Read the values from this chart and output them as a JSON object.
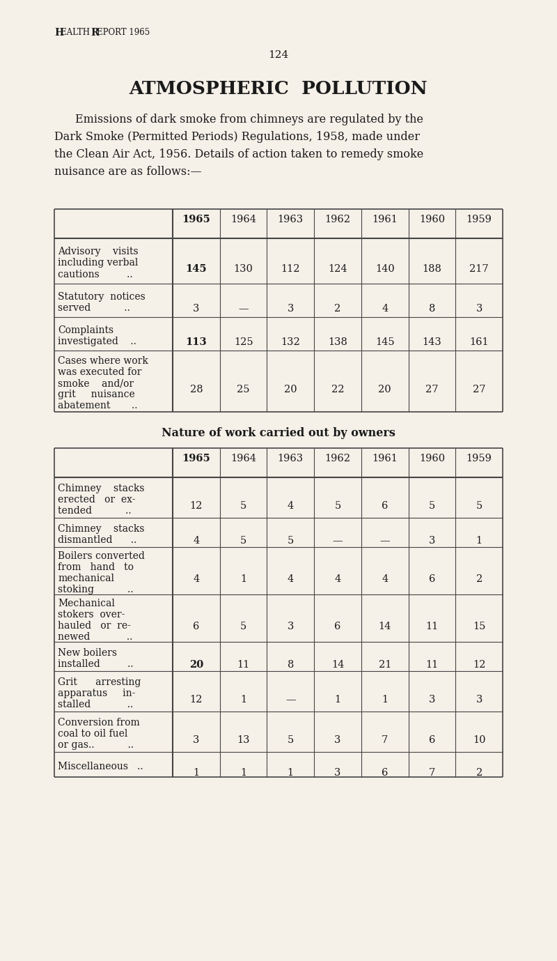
{
  "page_header": "Health Report 1965",
  "page_number": "124",
  "main_title": "ATMOSPHERIC  POLLUTION",
  "intro_text": [
    "Emissions of dark smoke from chimneys are regulated by the",
    "Dark Smoke (Permitted Periods) Regulations, 1958, made under",
    "the Clean Air Act, 1956. Details of action taken to remedy smoke",
    "nuisance are as follows:—"
  ],
  "table1_years": [
    "1965",
    "1964",
    "1963",
    "1962",
    "1961",
    "1960",
    "1959"
  ],
  "table1_rows": [
    {
      "label": [
        "Advisory    visits",
        "including verbal",
        "cautions         .."
      ],
      "values": [
        "145",
        "130",
        "112",
        "124",
        "140",
        "188",
        "217"
      ],
      "bold_first": true
    },
    {
      "label": [
        "Statutory  notices",
        "served           .."
      ],
      "values": [
        "3",
        "—",
        "3",
        "2",
        "4",
        "8",
        "3"
      ],
      "bold_first": false
    },
    {
      "label": [
        "Complaints",
        "investigated    .."
      ],
      "values": [
        "113",
        "125",
        "132",
        "138",
        "145",
        "143",
        "161"
      ],
      "bold_first": true
    },
    {
      "label": [
        "Cases where work",
        "was executed for",
        "smoke    and/or",
        "grit     nuisance",
        "abatement       .."
      ],
      "values": [
        "28",
        "25",
        "20",
        "22",
        "20",
        "27",
        "27"
      ],
      "bold_first": false
    }
  ],
  "table2_title": "Nature of work carried out by owners",
  "table2_years": [
    "1965",
    "1964",
    "1963",
    "1962",
    "1961",
    "1960",
    "1959"
  ],
  "table2_rows": [
    {
      "label": [
        "Chimney    stacks",
        "erected   or  ex-",
        "tended           .."
      ],
      "values": [
        "12",
        "5",
        "4",
        "5",
        "6",
        "5",
        "5"
      ],
      "bold_first": false
    },
    {
      "label": [
        "Chimney    stacks",
        "dismantled      .."
      ],
      "values": [
        "4",
        "5",
        "5",
        "—",
        "—",
        "3",
        "1"
      ],
      "bold_first": false
    },
    {
      "label": [
        "Boilers converted",
        "from   hand   to",
        "mechanical",
        "stoking           .."
      ],
      "values": [
        "4",
        "1",
        "4",
        "4",
        "4",
        "6",
        "2"
      ],
      "bold_first": false
    },
    {
      "label": [
        "Mechanical",
        "stokers  over-",
        "hauled   or  re-",
        "newed            .."
      ],
      "values": [
        "6",
        "5",
        "3",
        "6",
        "14",
        "11",
        "15"
      ],
      "bold_first": false
    },
    {
      "label": [
        "New boilers",
        "installed         .."
      ],
      "values": [
        "20",
        "11",
        "8",
        "14",
        "21",
        "11",
        "12"
      ],
      "bold_first": true
    },
    {
      "label": [
        "Grit      arresting",
        "apparatus     in-",
        "stalled            .."
      ],
      "values": [
        "12",
        "1",
        "—",
        "1",
        "1",
        "3",
        "3"
      ],
      "bold_first": false
    },
    {
      "label": [
        "Conversion from",
        "coal to oil fuel",
        "or gas..           .."
      ],
      "values": [
        "3",
        "13",
        "5",
        "3",
        "7",
        "6",
        "10"
      ],
      "bold_first": false
    },
    {
      "label": [
        "Miscellaneous   .."
      ],
      "values": [
        "1",
        "1",
        "1",
        "3",
        "6",
        "7",
        "2"
      ],
      "bold_first": false
    }
  ],
  "bg_color": "#f5f0e8",
  "text_color": "#1a1a1a",
  "line_color": "#444444",
  "header_color": "#1a1a1a"
}
